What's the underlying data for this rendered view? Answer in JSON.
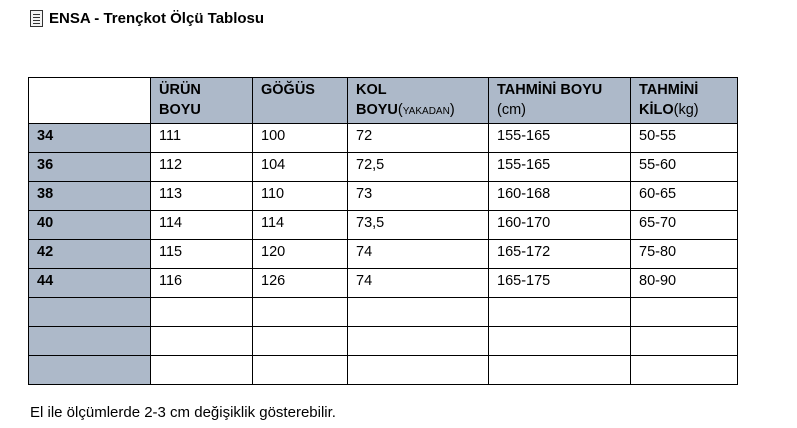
{
  "title": "ENSA - Trençkot Ölçü Tablosu",
  "icon": "document-icon",
  "colors": {
    "header_fill": "#adb9c9"
  },
  "table": {
    "headers": [
      {
        "bold": "",
        "normal": ""
      },
      {
        "bold": "ÜRÜN BOYU",
        "normal": ""
      },
      {
        "bold": "GÖĞÜS",
        "normal": ""
      },
      {
        "bold": "KOL BOYU",
        "open": "(",
        "small": "YAKADAN",
        "close": ")"
      },
      {
        "bold": "TAHMİNİ BOYU",
        "normal": "(cm)"
      },
      {
        "bold": "TAHMİNİ KİLO",
        "normal": "(kg)"
      }
    ],
    "rows": [
      [
        "34",
        "111",
        "100",
        "72",
        "155-165",
        "50-55"
      ],
      [
        "36",
        "112",
        "104",
        "72,5",
        "155-165",
        "55-60"
      ],
      [
        "38",
        "113",
        "110",
        "73",
        "160-168",
        "60-65"
      ],
      [
        "40",
        "114",
        "114",
        "73,5",
        "160-170",
        "65-70"
      ],
      [
        "42",
        "115",
        "120",
        "74",
        "165-172",
        "75-80"
      ],
      [
        "44",
        "116",
        "126",
        "74",
        "165-175",
        "80-90"
      ],
      [
        "",
        "",
        "",
        "",
        "",
        ""
      ],
      [
        "",
        "",
        "",
        "",
        "",
        ""
      ],
      [
        "",
        "",
        "",
        "",
        "",
        ""
      ]
    ]
  },
  "note": "El ile ölçümlerde 2-3 cm değişiklik gösterebilir."
}
